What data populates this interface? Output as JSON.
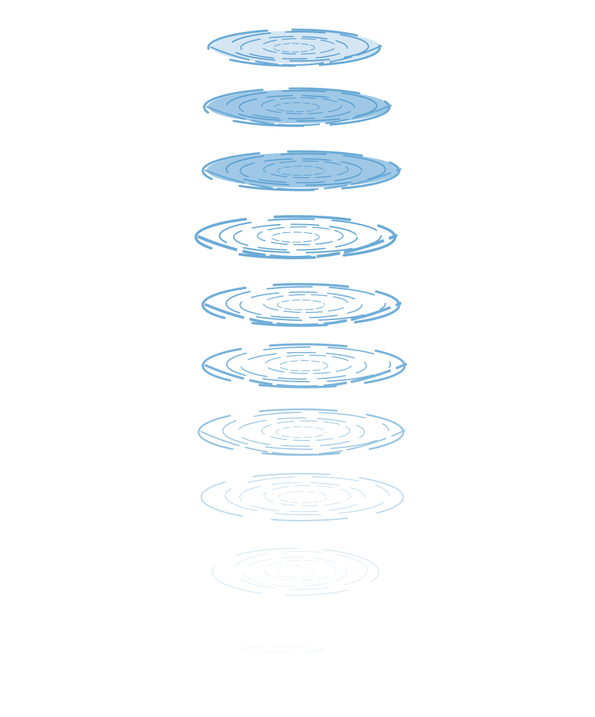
{
  "sprite_sheet": {
    "subject": "water-ripple-animation",
    "frame_count": 10,
    "colors": {
      "ripple_dark": "#6aaad6",
      "ripple_mid": "#9ec8e6",
      "ripple_light": "#d4e6f4",
      "background": "#ffffff"
    },
    "frames": [
      {
        "name": "ripple-frame-1",
        "opacity": 1.0,
        "fill": "light"
      },
      {
        "name": "ripple-frame-2",
        "opacity": 1.0,
        "fill": "mid"
      },
      {
        "name": "ripple-frame-3",
        "opacity": 1.0,
        "fill": "mid"
      },
      {
        "name": "ripple-frame-4",
        "opacity": 1.0,
        "fill": "none"
      },
      {
        "name": "ripple-frame-5",
        "opacity": 0.95,
        "fill": "none"
      },
      {
        "name": "ripple-frame-6",
        "opacity": 0.9,
        "fill": "none"
      },
      {
        "name": "ripple-frame-7",
        "opacity": 0.7,
        "fill": "none"
      },
      {
        "name": "ripple-frame-8",
        "opacity": 0.45,
        "fill": "none"
      },
      {
        "name": "ripple-frame-9",
        "opacity": 0.22,
        "fill": "none"
      },
      {
        "name": "ripple-frame-10",
        "opacity": 0.08,
        "fill": "none"
      }
    ]
  }
}
